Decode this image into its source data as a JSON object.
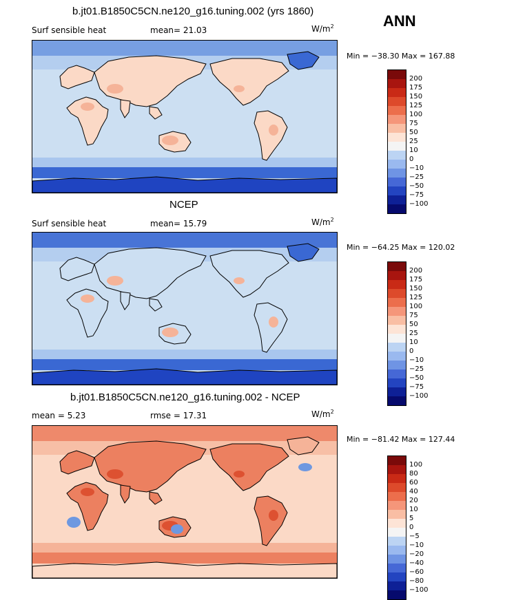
{
  "season": "ANN",
  "unit_label": "W/m",
  "unit_exp": "2",
  "colors": {
    "ocean_light": "#ccdff2",
    "cold_1": "#a9c6ee",
    "cold_2": "#6e98e0",
    "cold_3": "#3a68d3",
    "cold_4": "#1f44c1",
    "warm_1": "#fbd9c6",
    "warm_2": "#f5b398",
    "warm_3": "#ec8060",
    "warm_4": "#dd5131",
    "coast": "#000000"
  },
  "panels": [
    {
      "title": "b.jt01.B1850C5CN.ne120_g16.tuning.002 (yrs 1860)",
      "left_label": "Surf sensible heat",
      "mid_label": "mean=  21.03",
      "min_max": "Min = −38.30 Max = 167.88",
      "colorbar": [
        "200",
        "175",
        "150",
        "125",
        "100",
        "75",
        "50",
        "25",
        "10",
        "0",
        "−10",
        "−25",
        "−50",
        "−75",
        "−100"
      ]
    },
    {
      "title": "NCEP",
      "left_label": "Surf sensible heat",
      "mid_label": "mean=  15.79",
      "min_max": "Min = −64.25 Max = 120.02",
      "colorbar": [
        "200",
        "175",
        "150",
        "125",
        "100",
        "75",
        "50",
        "25",
        "10",
        "0",
        "−10",
        "−25",
        "−50",
        "−75",
        "−100"
      ]
    },
    {
      "title": "b.jt01.B1850C5CN.ne120_g16.tuning.002 - NCEP",
      "left_label": "mean =   5.23",
      "mid_label": "rmse =  17.31",
      "min_max": "Min = −81.42 Max = 127.44",
      "colorbar": [
        "100",
        "80",
        "60",
        "40",
        "20",
        "10",
        "5",
        "0",
        "−5",
        "−10",
        "−20",
        "−40",
        "−60",
        "−80",
        "−100"
      ]
    }
  ],
  "chart_data": [
    {
      "type": "heatmap",
      "title": "b.jt01.B1850C5CN.ne120_g16.tuning.002 (yrs 1860)",
      "variable": "Surf sensible heat",
      "units": "W/m2",
      "mean": 21.03,
      "min": -38.3,
      "max": 167.88,
      "levels": [
        -100,
        -75,
        -50,
        -25,
        -10,
        0,
        10,
        25,
        50,
        75,
        100,
        125,
        150,
        175,
        200
      ]
    },
    {
      "type": "heatmap",
      "title": "NCEP",
      "variable": "Surf sensible heat",
      "units": "W/m2",
      "mean": 15.79,
      "min": -64.25,
      "max": 120.02,
      "levels": [
        -100,
        -75,
        -50,
        -25,
        -10,
        0,
        10,
        25,
        50,
        75,
        100,
        125,
        150,
        175,
        200
      ]
    },
    {
      "type": "heatmap",
      "title": "b.jt01.B1850C5CN.ne120_g16.tuning.002 - NCEP",
      "units": "W/m2",
      "mean": 5.23,
      "rmse": 17.31,
      "min": -81.42,
      "max": 127.44,
      "levels": [
        -100,
        -80,
        -60,
        -40,
        -20,
        -10,
        -5,
        0,
        5,
        10,
        20,
        40,
        60,
        80,
        100
      ]
    }
  ]
}
